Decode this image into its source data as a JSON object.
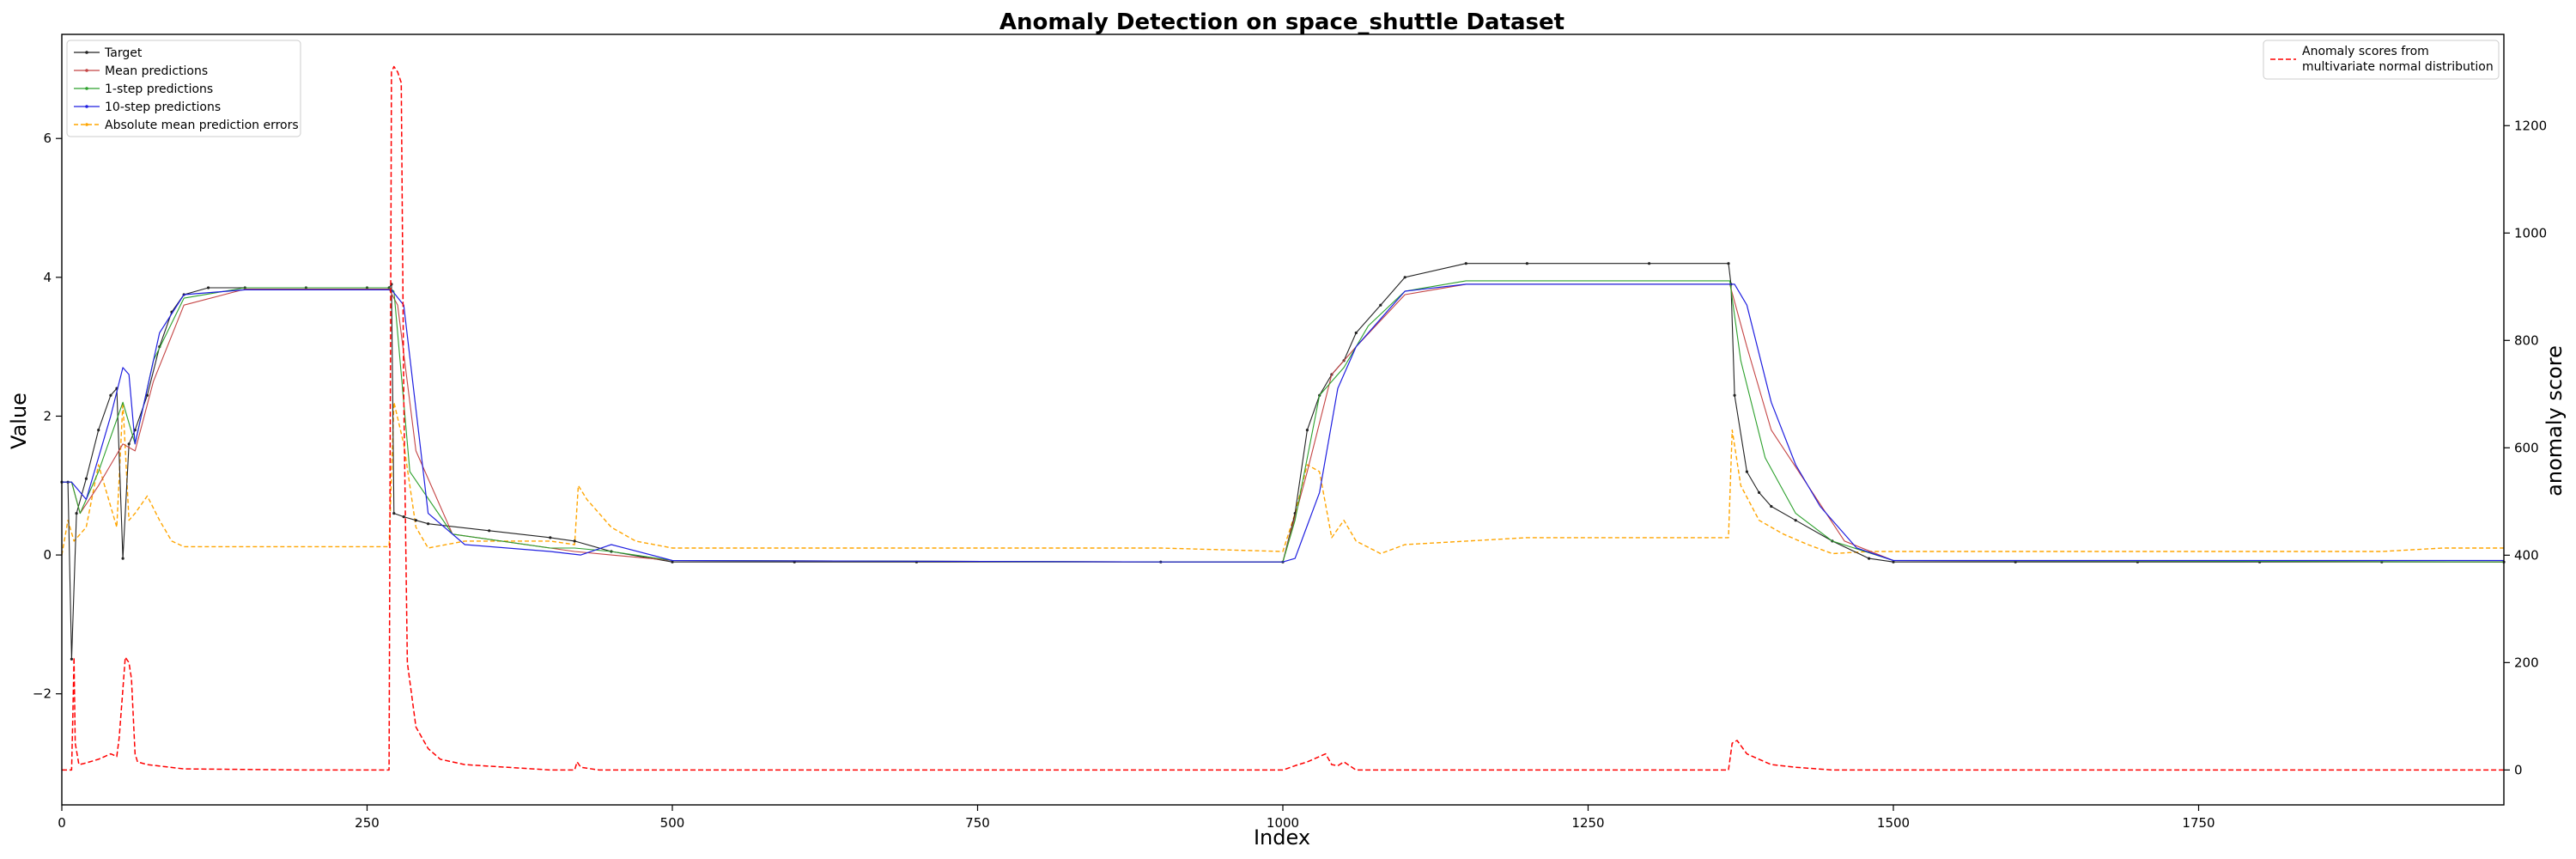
{
  "chart_data": {
    "type": "line",
    "title": "Anomaly Detection on space_shuttle Dataset",
    "xlabel": "Index",
    "ylabel": "Value",
    "y2label": "anomaly score",
    "xlim": [
      0,
      2000
    ],
    "ylim": [
      -3.6,
      7.5
    ],
    "y2lim": [
      -65,
      1370
    ],
    "x_ticks": [
      0,
      250,
      500,
      750,
      1000,
      1250,
      1500,
      1750
    ],
    "y_ticks": [
      -2,
      0,
      2,
      4,
      6
    ],
    "y2_ticks": [
      0,
      200,
      400,
      600,
      800,
      1000,
      1200
    ],
    "grid": false,
    "legend_left": {
      "placement": "top-left",
      "entries": [
        {
          "label": "Target",
          "color": "#222222"
        },
        {
          "label": "Mean predictions",
          "color": "#c44444"
        },
        {
          "label": "1-step predictions",
          "color": "#2ca02c"
        },
        {
          "label": "10-step predictions",
          "color": "#1f1fe0"
        },
        {
          "label": "Absolute mean prediction errors",
          "color": "#ffa500"
        }
      ]
    },
    "legend_right": {
      "placement": "top-right",
      "entries": [
        {
          "label": "Anomaly scores from",
          "label2": "multivariate normal distribution",
          "color": "#ff0000"
        }
      ]
    },
    "series": [
      {
        "name": "Target",
        "axis": "left",
        "color": "#222222",
        "x": [
          0,
          5,
          8,
          12,
          20,
          30,
          40,
          45,
          50,
          55,
          60,
          70,
          80,
          90,
          100,
          120,
          150,
          200,
          250,
          268,
          270,
          272,
          280,
          290,
          300,
          350,
          400,
          420,
          450,
          500,
          600,
          700,
          900,
          1000,
          1010,
          1020,
          1030,
          1040,
          1050,
          1060,
          1080,
          1100,
          1150,
          1200,
          1300,
          1365,
          1367,
          1370,
          1380,
          1390,
          1400,
          1420,
          1450,
          1480,
          1500,
          1600,
          1700,
          1800,
          1900,
          2000
        ],
        "y": [
          1.05,
          1.05,
          -1.5,
          0.6,
          1.1,
          1.8,
          2.3,
          2.4,
          -0.05,
          1.6,
          1.8,
          2.3,
          3.0,
          3.5,
          3.75,
          3.85,
          3.85,
          3.85,
          3.85,
          3.85,
          3.9,
          0.6,
          0.55,
          0.5,
          0.45,
          0.35,
          0.25,
          0.2,
          0.05,
          -0.1,
          -0.1,
          -0.1,
          -0.1,
          -0.1,
          0.6,
          1.8,
          2.3,
          2.6,
          2.8,
          3.2,
          3.6,
          4.0,
          4.2,
          4.2,
          4.2,
          4.2,
          3.9,
          2.3,
          1.2,
          0.9,
          0.7,
          0.5,
          0.2,
          -0.05,
          -0.1,
          -0.1,
          -0.1,
          -0.1,
          -0.1,
          -0.1
        ]
      },
      {
        "name": "Mean predictions",
        "axis": "left",
        "color": "#c44444",
        "x": [
          0,
          8,
          15,
          30,
          50,
          60,
          75,
          100,
          150,
          268,
          275,
          290,
          320,
          400,
          420,
          450,
          500,
          900,
          1000,
          1020,
          1040,
          1060,
          1100,
          1150,
          1366,
          1380,
          1400,
          1430,
          1460,
          1500,
          2000
        ],
        "y": [
          1.05,
          1.05,
          0.6,
          1.0,
          1.6,
          1.5,
          2.5,
          3.6,
          3.83,
          3.83,
          3.6,
          1.5,
          0.3,
          0.1,
          0.05,
          0.0,
          -0.08,
          -0.1,
          -0.1,
          1.2,
          2.6,
          3.0,
          3.75,
          3.9,
          3.9,
          3.0,
          1.8,
          1.0,
          0.2,
          -0.08,
          -0.1
        ]
      },
      {
        "name": "1-step predictions",
        "axis": "left",
        "color": "#2ca02c",
        "x": [
          0,
          8,
          15,
          30,
          50,
          60,
          75,
          100,
          150,
          268,
          272,
          285,
          320,
          400,
          420,
          450,
          500,
          900,
          1000,
          1010,
          1030,
          1050,
          1070,
          1100,
          1150,
          1366,
          1375,
          1395,
          1420,
          1450,
          1500,
          2000
        ],
        "y": [
          1.05,
          1.05,
          0.6,
          1.2,
          2.2,
          1.6,
          2.8,
          3.7,
          3.85,
          3.85,
          3.8,
          1.2,
          0.3,
          0.1,
          0.1,
          0.05,
          -0.08,
          -0.1,
          -0.1,
          0.5,
          2.3,
          2.7,
          3.3,
          3.8,
          3.95,
          3.95,
          2.8,
          1.4,
          0.6,
          0.2,
          -0.08,
          -0.1
        ]
      },
      {
        "name": "10-step predictions",
        "axis": "left",
        "color": "#1f1fe0",
        "x": [
          0,
          8,
          20,
          40,
          50,
          55,
          60,
          80,
          100,
          150,
          270,
          280,
          300,
          330,
          400,
          425,
          450,
          500,
          900,
          1000,
          1010,
          1030,
          1045,
          1060,
          1080,
          1100,
          1150,
          1370,
          1380,
          1400,
          1420,
          1440,
          1470,
          1500,
          2000
        ],
        "y": [
          1.05,
          1.05,
          0.8,
          2.0,
          2.7,
          2.6,
          1.6,
          3.2,
          3.75,
          3.82,
          3.82,
          3.6,
          0.6,
          0.15,
          0.05,
          0.0,
          0.15,
          -0.08,
          -0.1,
          -0.1,
          -0.05,
          0.9,
          2.4,
          3.0,
          3.4,
          3.8,
          3.9,
          3.9,
          3.6,
          2.2,
          1.3,
          0.7,
          0.1,
          -0.08,
          -0.08
        ]
      },
      {
        "name": "Absolute mean prediction errors",
        "axis": "left",
        "color": "#ffa500",
        "x": [
          0,
          5,
          10,
          20,
          30,
          45,
          50,
          55,
          60,
          70,
          80,
          90,
          100,
          150,
          268,
          272,
          280,
          290,
          300,
          330,
          400,
          420,
          423,
          430,
          450,
          470,
          500,
          600,
          900,
          1000,
          1010,
          1020,
          1030,
          1040,
          1050,
          1060,
          1080,
          1100,
          1200,
          1300,
          1365,
          1368,
          1375,
          1390,
          1410,
          1430,
          1450,
          1480,
          1500,
          1600,
          1900,
          1950,
          2000
        ],
        "y": [
          0,
          0.5,
          0.2,
          0.4,
          1.3,
          0.4,
          2.2,
          0.5,
          0.6,
          0.85,
          0.5,
          0.2,
          0.12,
          0.12,
          0.12,
          2.2,
          1.6,
          0.4,
          0.1,
          0.2,
          0.2,
          0.15,
          1.0,
          0.8,
          0.4,
          0.2,
          0.1,
          0.1,
          0.1,
          0.05,
          0.6,
          1.3,
          1.2,
          0.25,
          0.5,
          0.2,
          0.02,
          0.15,
          0.25,
          0.25,
          0.25,
          1.8,
          1.0,
          0.5,
          0.3,
          0.15,
          0.02,
          0.05,
          0.05,
          0.05,
          0.05,
          0.1,
          0.1
        ]
      },
      {
        "name": "Anomaly scores from multivariate normal distribution",
        "axis": "right",
        "color": "#ff0000",
        "x": [
          0,
          8,
          9,
          10,
          11,
          14,
          18,
          30,
          40,
          45,
          47,
          50,
          52,
          55,
          57,
          60,
          62,
          70,
          100,
          200,
          265,
          268,
          270,
          272,
          275,
          278,
          280,
          283,
          290,
          300,
          310,
          330,
          400,
          420,
          422,
          425,
          440,
          500,
          1000,
          1010,
          1020,
          1030,
          1035,
          1040,
          1045,
          1050,
          1060,
          1100,
          1360,
          1365,
          1368,
          1372,
          1380,
          1390,
          1400,
          1420,
          1450,
          1500,
          2000
        ],
        "y": [
          0,
          0,
          100,
          210,
          50,
          10,
          12,
          20,
          30,
          25,
          60,
          150,
          210,
          200,
          170,
          30,
          15,
          10,
          2,
          0,
          0,
          0,
          1300,
          1310,
          1300,
          1280,
          700,
          200,
          80,
          40,
          20,
          10,
          0,
          0,
          15,
          5,
          0,
          0,
          0,
          8,
          15,
          25,
          30,
          10,
          8,
          15,
          0,
          0,
          0,
          0,
          50,
          55,
          30,
          20,
          10,
          5,
          0,
          0,
          0
        ]
      }
    ]
  }
}
